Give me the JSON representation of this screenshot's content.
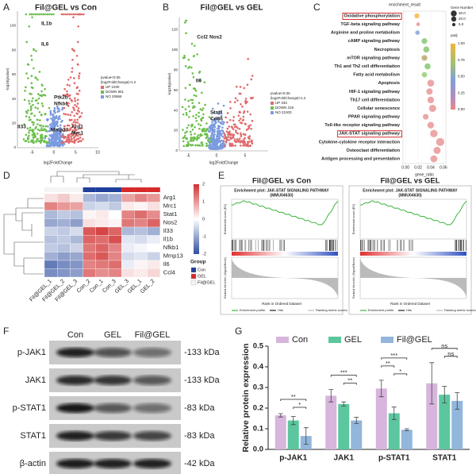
{
  "panel_labels": [
    "A",
    "B",
    "C",
    "D",
    "E",
    "F",
    "G"
  ],
  "volcano": [
    {
      "title": "Fil@GEL vs Con",
      "x_label": "log2FoldChange",
      "y_label": "-log10(pvalue)",
      "xticks": [
        "-5",
        "0",
        "5",
        "10"
      ],
      "yticks": [
        "0",
        "20",
        "40",
        "60",
        "80",
        "100"
      ],
      "legend": [
        "pvalue<0.05",
        "|log2FoldChange|>1.2",
        "UP 1030",
        "DOWN 901",
        "NO 20866"
      ],
      "genes": [
        "IL1b",
        "IL6",
        "Ptk2b",
        "Nfkb1",
        "Il33",
        "Mmp13",
        "Arg1",
        "Mrc1"
      ]
    },
    {
      "title": "Fil@GEL vs GEL",
      "x_label": "log2FoldChange",
      "y_label": "-log10(pvalue)",
      "xticks": [
        "-5",
        "0",
        "5"
      ],
      "yticks": [
        "0",
        "20",
        "40",
        "60",
        "80",
        "100",
        "120"
      ],
      "legend": [
        "pvalue<0.05",
        "|log2FoldChange|>1.2",
        "UP 333",
        "DOWN 319",
        "NO 21003"
      ],
      "genes": [
        "Ccl2",
        "Nos2",
        "Il6",
        "Stat1",
        "Cd86"
      ]
    }
  ],
  "heatmap": {
    "genes": [
      "Arg1",
      "Mrc1",
      "Stat1",
      "Nos2",
      "Il33",
      "Il1b",
      "Nfkb1",
      "Mmp13",
      "Il6",
      "Ccl4"
    ],
    "samples": [
      "Fil@GEL_1",
      "Fil@GEL_2",
      "Fil@GEL_3",
      "Con_2",
      "Con_1",
      "Con_3",
      "GEL_3",
      "GEL_1",
      "GEL_2"
    ],
    "sample_groups": [
      2,
      2,
      2,
      0,
      0,
      0,
      1,
      1,
      1
    ],
    "values": [
      [
        0.3,
        0.5,
        0.2,
        -0.8,
        -1.0,
        -0.9,
        0.9,
        1.2,
        1.0
      ],
      [
        1.2,
        1.0,
        0.9,
        -0.5,
        -0.4,
        -0.6,
        0.2,
        0.1,
        0.3
      ],
      [
        -0.8,
        -0.6,
        -0.7,
        0.1,
        0.2,
        0.0,
        1.2,
        1.4,
        1.1
      ],
      [
        -1.0,
        -0.9,
        -1.1,
        0.3,
        0.2,
        0.1,
        1.3,
        1.2,
        1.5
      ],
      [
        -0.5,
        -0.6,
        -0.4,
        1.6,
        1.8,
        1.5,
        -0.8,
        -0.7,
        -0.9
      ],
      [
        -0.7,
        -0.6,
        -0.8,
        1.5,
        1.4,
        1.7,
        -0.3,
        -0.4,
        -0.2
      ],
      [
        -0.6,
        -0.7,
        -0.5,
        1.3,
        1.5,
        1.2,
        -0.2,
        -0.1,
        0.0
      ],
      [
        -0.9,
        -1.1,
        -1.0,
        1.4,
        1.6,
        1.2,
        -0.4,
        -0.3,
        -0.5
      ],
      [
        -1.5,
        -1.3,
        -1.2,
        1.2,
        1.3,
        1.4,
        -0.2,
        0.1,
        0.2
      ],
      [
        -1.3,
        -1.2,
        -1.1,
        1.3,
        1.1,
        1.2,
        0.3,
        0.2,
        0.4
      ]
    ],
    "colorbar_ticks": [
      2,
      1,
      0,
      -1,
      -2
    ],
    "legend_title": "Group",
    "groups": [
      "Con",
      "GEL",
      "Fil@GEL"
    ],
    "group_colors": [
      "#1f3f9a",
      "#d62a2a",
      "#f4f4f4"
    ]
  },
  "gsea": {
    "panels": [
      {
        "comparison": "Fil@GEL vs Con",
        "title": "Enrichment plot: JAK-STAT SIGNALING PATHWAY",
        "subtitle": "(MMU04630)"
      },
      {
        "comparison": "Fil@GEL vs GEL",
        "title": "Enrichment plot: JAK-STAT SIGNALING PATHWAY",
        "subtitle": "(MMU04630)"
      }
    ],
    "es_label": "Enrichment score (ES)",
    "metric_label": "Ranked list metric (Signal2Noise)",
    "rank_label": "Rank in Ordered Dataset",
    "legend": [
      "Enrichment profile",
      "Hits",
      "Ranking metric scores"
    ]
  },
  "blot": {
    "lanes": [
      "Con",
      "GEL",
      "Fil@GEL"
    ],
    "proteins": [
      "p-JAK1",
      "JAK1",
      "p-STAT1",
      "STAT1",
      "β-actin"
    ],
    "sizes": [
      "-133 kDa",
      "-133 kDa",
      "-83 kDa",
      "-83 kDa",
      "-42 kDa"
    ]
  },
  "chart_data": [
    {
      "type": "scatter",
      "title": "enrichment_result",
      "x_label": "gene_ratio",
      "categories": [
        "Oxidative phosphorylation",
        "TGF-beta signaling pathway",
        "Arginine and proline metabolism",
        "cAMP signaling pathway",
        "Necroptosis",
        "mTOR signaling pathway",
        "Th1 and Th2 cell differentiation",
        "Fatty acid metabolism",
        "Apoptosis",
        "HIF-1 signaling pathway",
        "Th17 cell differentiation",
        "Cellular senescence",
        "PPAR signaling pathway",
        "Toll-like receptor signaling pathway",
        "JAK-STAT signaling pathway",
        "Cytokine-cytokine receptor interaction",
        "Osteoclast differentiation",
        "Antigen processing and presentation"
      ],
      "values": [
        0.018,
        0.02,
        0.019,
        0.03,
        0.033,
        0.03,
        0.035,
        0.03,
        0.04,
        0.038,
        0.04,
        0.043,
        0.032,
        0.04,
        0.045,
        0.055,
        0.05,
        0.045
      ],
      "sizes": [
        8,
        3,
        6,
        12,
        14,
        12,
        14,
        10,
        20,
        16,
        18,
        22,
        12,
        18,
        24,
        30,
        22,
        20
      ],
      "colors": [
        "#f2b43c",
        "#e88a8a",
        "#7fa0d8",
        "#7cc46a",
        "#84c06a",
        "#b8a060",
        "#7cc46a",
        "#90c870",
        "#e89090",
        "#e89090",
        "#e89090",
        "#e89090",
        "#e89090",
        "#e89090",
        "#e89090",
        "#e89090",
        "#e89090",
        "#e89090"
      ],
      "boxed": [
        0,
        14
      ],
      "xlim": [
        -0.004,
        0.064
      ],
      "xticks": [
        {
          "value": 0,
          "label": "0.00"
        },
        {
          "value": 0.02,
          "label": "0.02"
        },
        {
          "value": 0.04,
          "label": "0.04"
        },
        {
          "value": 0.06,
          "label": "0.06"
        }
      ],
      "size_legend_title": "Gene Number",
      "size_legend": [
        {
          "value": 30,
          "label": "30.0"
        },
        {
          "value": 20,
          "label": "20.0"
        },
        {
          "value": 5,
          "label": "5.0"
        }
      ],
      "color_legend_title": "padj",
      "color_ticks": [
        {
          "value": 1,
          "label": "1.00"
        },
        {
          "value": 0.75,
          "label": "0.75"
        },
        {
          "value": 0.5,
          "label": "0.50"
        },
        {
          "value": 0.25,
          "label": "0.25"
        },
        {
          "value": 0,
          "label": "0.00"
        }
      ]
    },
    {
      "type": "bar",
      "y_label": "Relative protein expression",
      "categories": [
        "p-JAK1",
        "JAK1",
        "p-STAT1",
        "STAT1"
      ],
      "series": [
        {
          "name": "Con",
          "color": "#d7b5dc",
          "values": [
            0.165,
            0.26,
            0.295,
            0.32
          ],
          "errors": [
            0.008,
            0.03,
            0.04,
            0.1
          ]
        },
        {
          "name": "GEL",
          "color": "#5cc79f",
          "values": [
            0.14,
            0.22,
            0.175,
            0.265
          ],
          "errors": [
            0.02,
            0.01,
            0.03,
            0.04
          ]
        },
        {
          "name": "Fil@GEL",
          "color": "#92b6dc",
          "values": [
            0.065,
            0.14,
            0.095,
            0.235
          ],
          "errors": [
            0.04,
            0.015,
            0.005,
            0.04
          ]
        }
      ],
      "comparisons": [
        {
          "category": 0,
          "series": [
            1,
            2
          ],
          "label": "*"
        },
        {
          "category": 0,
          "series": [
            0,
            2
          ],
          "label": "**"
        },
        {
          "category": 1,
          "series": [
            1,
            2
          ],
          "label": "**"
        },
        {
          "category": 1,
          "series": [
            0,
            2
          ],
          "label": "***"
        },
        {
          "category": 2,
          "series": [
            1,
            2
          ],
          "label": "*"
        },
        {
          "category": 2,
          "series": [
            0,
            1
          ],
          "label": "**"
        },
        {
          "category": 2,
          "series": [
            0,
            2
          ],
          "label": "***"
        },
        {
          "category": 3,
          "series": [
            1,
            2
          ],
          "label": "ns"
        },
        {
          "category": 3,
          "series": [
            0,
            2
          ],
          "label": "ns"
        }
      ],
      "ylim": [
        0,
        0.5
      ],
      "yticks": [
        {
          "value": 0,
          "label": "0.0"
        },
        {
          "value": 0.1,
          "label": "0.1"
        },
        {
          "value": 0.2,
          "label": "0.2"
        },
        {
          "value": 0.3,
          "label": "0.3"
        },
        {
          "value": 0.4,
          "label": "0.4"
        },
        {
          "value": 0.5,
          "label": "0.5"
        }
      ],
      "legend": "top"
    }
  ]
}
